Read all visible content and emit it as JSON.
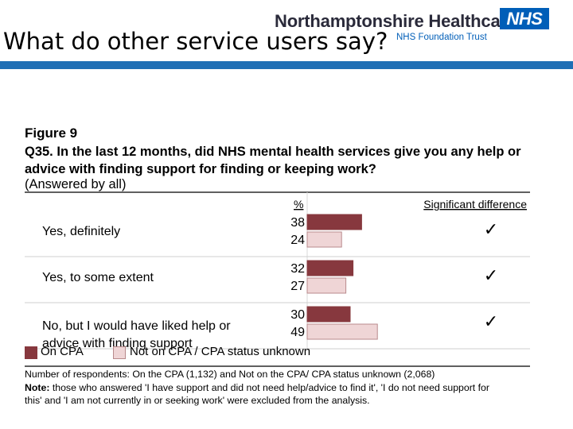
{
  "header": {
    "slide_title": "What do other service users say?",
    "org_name": "Northamptonshire Healthcare",
    "trust_name": "NHS Foundation Trust",
    "nhs_logo": "NHS"
  },
  "colors": {
    "title_rule": "#1f6fb5",
    "on_cpa": "#87383e",
    "not_on_cpa": "#efd5d6",
    "nhs_blue": "#005eb8"
  },
  "figure": {
    "label": "Figure 9",
    "question": "Q35. In the last 12 months, did NHS mental health services give you any help or advice with finding support for finding or keeping work?",
    "answered_by": "(Answered by all)"
  },
  "chart_data": {
    "type": "bar",
    "orientation": "horizontal",
    "pct_header": "%",
    "sig_header": "Significant difference",
    "categories": [
      [
        "Yes, definitely"
      ],
      [
        "Yes, to some extent"
      ],
      [
        "No, but I would have liked help or",
        "advice with finding support"
      ]
    ],
    "series": [
      {
        "name": "On CPA",
        "values": [
          38,
          32,
          30
        ]
      },
      {
        "name": "Not on CPA / CPA status unknown",
        "values": [
          24,
          27,
          49
        ]
      }
    ],
    "significant": [
      true,
      true,
      true
    ],
    "sig_mark": "✓",
    "xlim": [
      0,
      100
    ]
  },
  "legend": {
    "on_cpa": "On CPA",
    "not_on_cpa": "Not on CPA / CPA status unknown"
  },
  "footnote": {
    "respondents": "Number of respondents: On the CPA (1,132) and Not on the CPA/ CPA status unknown (2,068)",
    "note_label": "Note:",
    "note_line1": " those who answered 'I have support and did not need help/advice to find it', 'I do not need support for",
    "note_line2": "this' and 'I am not currently in or seeking work' were excluded from the analysis."
  }
}
